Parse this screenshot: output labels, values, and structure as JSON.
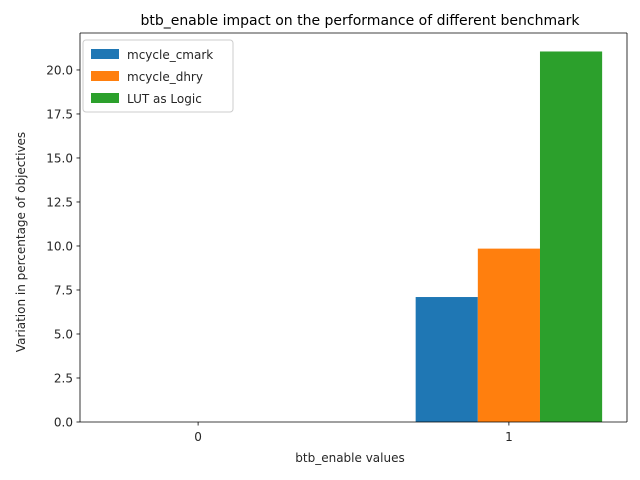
{
  "chart_data": {
    "type": "bar",
    "title": "btb_enable impact on the performance of different benchmark",
    "xlabel": "btb_enable values",
    "ylabel": "Variation in percentage of objectives",
    "categories": [
      "0",
      "1"
    ],
    "series": [
      {
        "name": "mcycle_cmark",
        "values": [
          0,
          7.1
        ],
        "color": "#1f77b4"
      },
      {
        "name": "mcycle_dhry",
        "values": [
          0,
          9.85
        ],
        "color": "#ff7f0e"
      },
      {
        "name": "LUT as Logic",
        "values": [
          0,
          21.05
        ],
        "color": "#2ca02c"
      }
    ],
    "ylim": [
      0,
      22.1
    ],
    "yticks": [
      "0.0",
      "2.5",
      "5.0",
      "7.5",
      "10.0",
      "12.5",
      "15.0",
      "17.5",
      "20.0"
    ],
    "grid": false,
    "legend_position": "top-left"
  }
}
